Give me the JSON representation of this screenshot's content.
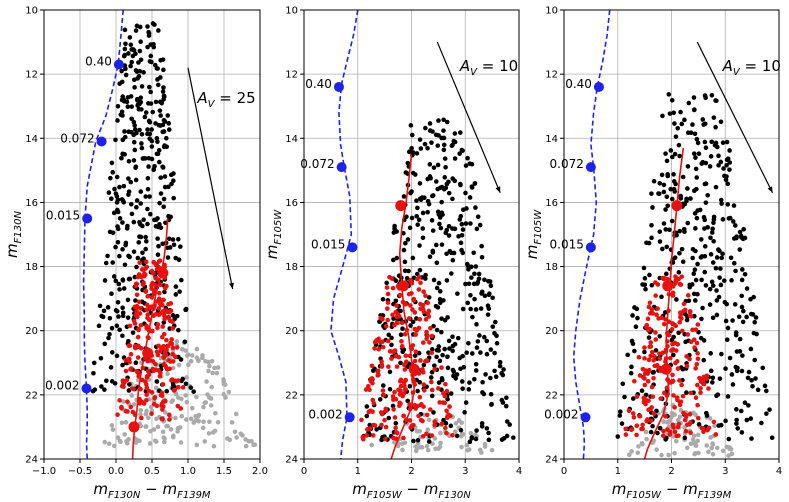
{
  "colors": {
    "black_stars": "#000000",
    "red_stars": "#e8110f",
    "grey_stars": "#aaaaaa",
    "blue_isochrone": "#1f22e8",
    "red_isochrone": "#e8110f",
    "grid": "#b0b0b0"
  },
  "chart_data": [
    {
      "type": "scatter",
      "xlabel": {
        "prefix": "m",
        "sub1": "F130N",
        "mid": " − m",
        "sub2": "F139M"
      },
      "ylabel": {
        "prefix": "m",
        "sub": "F130N"
      },
      "xlim": [
        -1.0,
        2.0
      ],
      "ylim": [
        24,
        10
      ],
      "xticks": [
        -1.0,
        -0.5,
        0.0,
        0.5,
        1.0,
        1.5,
        2.0
      ],
      "xtick_labels": [
        "−1.0",
        "−0.5",
        "0.0",
        "0.5",
        "1.0",
        "1.5",
        "2.0"
      ],
      "yticks": [
        10,
        12,
        14,
        16,
        18,
        20,
        22,
        24
      ],
      "ytick_labels": [
        "10",
        "12",
        "14",
        "16",
        "18",
        "20",
        "22",
        "24"
      ],
      "grid": true,
      "reddening_vector": {
        "from": [
          1.0,
          11.8
        ],
        "to": [
          1.62,
          18.7
        ],
        "label_prefix": "A",
        "label_sub": "V",
        "label_value": " = 25",
        "label_at": [
          1.13,
          12.9
        ]
      },
      "blue_isochrone": {
        "x": [
          0.1,
          0.08,
          0.06,
          0.03,
          -0.05,
          -0.14,
          -0.28,
          -0.4,
          -0.43,
          -0.44,
          -0.45,
          -0.44,
          -0.44,
          -0.43,
          -0.41,
          -0.4,
          -0.4,
          -0.41,
          -0.4
        ],
        "y": [
          10.0,
          10.5,
          11.0,
          11.7,
          12.5,
          13.3,
          14.1,
          15.5,
          16.5,
          17.5,
          18.5,
          19.5,
          20.3,
          21.0,
          21.8,
          22.5,
          23.0,
          23.5,
          24.0
        ]
      },
      "blue_masses": [
        {
          "label": "0.40",
          "x": 0.04,
          "y": 11.7
        },
        {
          "label": "0.072",
          "x": -0.2,
          "y": 14.1
        },
        {
          "label": "0.015",
          "x": -0.4,
          "y": 16.5
        },
        {
          "label": "0.002",
          "x": -0.41,
          "y": 21.8
        }
      ],
      "red_isochrone": {
        "x": [
          0.72,
          0.7,
          0.67,
          0.62,
          0.55,
          0.5,
          0.44,
          0.4,
          0.35,
          0.31,
          0.29,
          0.26,
          0.24,
          0.23
        ],
        "y": [
          16.5,
          17.1,
          17.7,
          18.3,
          18.9,
          19.5,
          20.2,
          20.7,
          21.3,
          21.9,
          22.5,
          23.0,
          23.5,
          24.0
        ]
      },
      "red_masses": [
        {
          "x": 0.65,
          "y": 18.2
        },
        {
          "x": 0.44,
          "y": 20.7
        },
        {
          "x": 0.25,
          "y": 23.0
        }
      ],
      "stars": {
        "black": {
          "n": 430,
          "x": [
            -0.35,
            1.08
          ],
          "y": [
            10.4,
            21.9
          ]
        },
        "red": {
          "n": 240,
          "x": [
            0.0,
            1.0
          ],
          "y": [
            17.8,
            22.8
          ]
        },
        "grey": {
          "n": 190,
          "x": [
            -0.2,
            1.95
          ],
          "y": [
            20.3,
            23.6
          ]
        }
      }
    },
    {
      "type": "scatter",
      "xlabel": {
        "prefix": "m",
        "sub1": "F105W",
        "mid": " − m",
        "sub2": "F130N"
      },
      "ylabel": {
        "prefix": "m",
        "sub": "F105W"
      },
      "xlim": [
        0,
        4
      ],
      "ylim": [
        24,
        10
      ],
      "xticks": [
        0,
        1,
        2,
        3,
        4
      ],
      "xtick_labels": [
        "0",
        "1",
        "2",
        "3",
        "4"
      ],
      "yticks": [
        10,
        12,
        14,
        16,
        18,
        20,
        22,
        24
      ],
      "ytick_labels": [
        "10",
        "12",
        "14",
        "16",
        "18",
        "20",
        "22",
        "24"
      ],
      "grid": true,
      "reddening_vector": {
        "from": [
          2.48,
          11.0
        ],
        "to": [
          3.65,
          15.7
        ],
        "label_prefix": "A",
        "label_sub": "V",
        "label_value": " = 10",
        "label_at": [
          2.9,
          11.9
        ]
      },
      "blue_isochrone": {
        "x": [
          1.0,
          0.92,
          0.8,
          0.7,
          0.65,
          0.68,
          0.75,
          0.85,
          0.88,
          0.72,
          0.55,
          0.5,
          0.65,
          0.78,
          0.8,
          0.72,
          0.68
        ],
        "y": [
          10.0,
          10.8,
          11.6,
          12.3,
          13.2,
          14.2,
          14.9,
          15.8,
          17.0,
          18.0,
          19.0,
          20.0,
          20.8,
          21.6,
          22.7,
          23.4,
          24.0
        ]
      },
      "blue_masses": [
        {
          "label": "0.40",
          "x": 0.65,
          "y": 12.4
        },
        {
          "label": "0.072",
          "x": 0.7,
          "y": 14.9
        },
        {
          "label": "0.015",
          "x": 0.9,
          "y": 17.4
        },
        {
          "label": "0.002",
          "x": 0.85,
          "y": 22.7
        }
      ],
      "red_isochrone": {
        "x": [
          2.0,
          1.95,
          1.9,
          1.82,
          1.78,
          1.82,
          1.86,
          1.95,
          2.02,
          2.05,
          2.0,
          1.85,
          1.7,
          1.62
        ],
        "y": [
          14.5,
          15.3,
          16.0,
          16.8,
          17.6,
          18.6,
          19.4,
          20.2,
          21.2,
          21.8,
          22.4,
          23.0,
          23.6,
          24.0
        ]
      },
      "red_masses": [
        {
          "x": 1.8,
          "y": 16.1
        },
        {
          "x": 1.85,
          "y": 18.6
        },
        {
          "x": 2.05,
          "y": 21.2
        }
      ],
      "stars": {
        "black": {
          "n": 460,
          "x": [
            1.05,
            3.95
          ],
          "y": [
            13.4,
            23.5
          ]
        },
        "red": {
          "n": 230,
          "x": [
            0.95,
            2.85
          ],
          "y": [
            18.3,
            23.4
          ]
        },
        "grey": {
          "n": 70,
          "x": [
            1.1,
            3.6
          ],
          "y": [
            22.5,
            23.8
          ]
        }
      }
    },
    {
      "type": "scatter",
      "xlabel": {
        "prefix": "m",
        "sub1": "F105W",
        "mid": " − m",
        "sub2": "F139M"
      },
      "ylabel": {
        "prefix": "m",
        "sub": "F105W"
      },
      "xlim": [
        0,
        4
      ],
      "ylim": [
        24,
        10
      ],
      "xticks": [
        0,
        1,
        2,
        3,
        4
      ],
      "xtick_labels": [
        "0",
        "1",
        "2",
        "3",
        "4"
      ],
      "yticks": [
        10,
        12,
        14,
        16,
        18,
        20,
        22,
        24
      ],
      "ytick_labels": [
        "10",
        "12",
        "14",
        "16",
        "18",
        "20",
        "22",
        "24"
      ],
      "grid": true,
      "reddening_vector": {
        "from": [
          2.48,
          11.0
        ],
        "to": [
          3.88,
          15.7
        ],
        "label_prefix": "A",
        "label_sub": "V",
        "label_value": " = 10",
        "label_at": [
          2.95,
          11.9
        ]
      },
      "blue_isochrone": {
        "x": [
          0.85,
          0.8,
          0.72,
          0.62,
          0.55,
          0.5,
          0.55,
          0.6,
          0.55,
          0.42,
          0.3,
          0.22,
          0.18,
          0.22,
          0.3,
          0.36,
          0.38,
          0.36
        ],
        "y": [
          10.0,
          10.8,
          11.6,
          12.4,
          13.2,
          14.2,
          14.9,
          16.0,
          17.0,
          18.0,
          19.0,
          20.0,
          20.8,
          21.6,
          22.4,
          23.0,
          23.5,
          24.0
        ]
      },
      "blue_masses": [
        {
          "label": "0.40",
          "x": 0.65,
          "y": 12.4
        },
        {
          "label": "0.072",
          "x": 0.5,
          "y": 14.9
        },
        {
          "label": "0.015",
          "x": 0.5,
          "y": 17.4
        },
        {
          "label": "0.002",
          "x": 0.4,
          "y": 22.7
        }
      ],
      "red_isochrone": {
        "x": [
          2.22,
          2.15,
          2.1,
          2.05,
          2.0,
          1.97,
          1.93,
          1.9,
          1.92,
          1.95,
          1.85,
          1.68,
          1.55,
          1.5
        ],
        "y": [
          14.3,
          15.2,
          16.1,
          17.0,
          17.8,
          18.6,
          19.5,
          20.3,
          21.2,
          21.9,
          22.6,
          23.2,
          23.7,
          24.0
        ]
      },
      "red_masses": [
        {
          "x": 2.1,
          "y": 16.1
        },
        {
          "x": 1.93,
          "y": 18.6
        },
        {
          "x": 1.9,
          "y": 21.2
        }
      ],
      "stars": {
        "black": {
          "n": 420,
          "x": [
            0.9,
            3.95
          ],
          "y": [
            12.6,
            23.5
          ]
        },
        "red": {
          "n": 220,
          "x": [
            1.1,
            2.9
          ],
          "y": [
            18.3,
            23.3
          ]
        },
        "grey": {
          "n": 90,
          "x": [
            1.2,
            3.2
          ],
          "y": [
            22.3,
            23.9
          ]
        }
      }
    }
  ]
}
